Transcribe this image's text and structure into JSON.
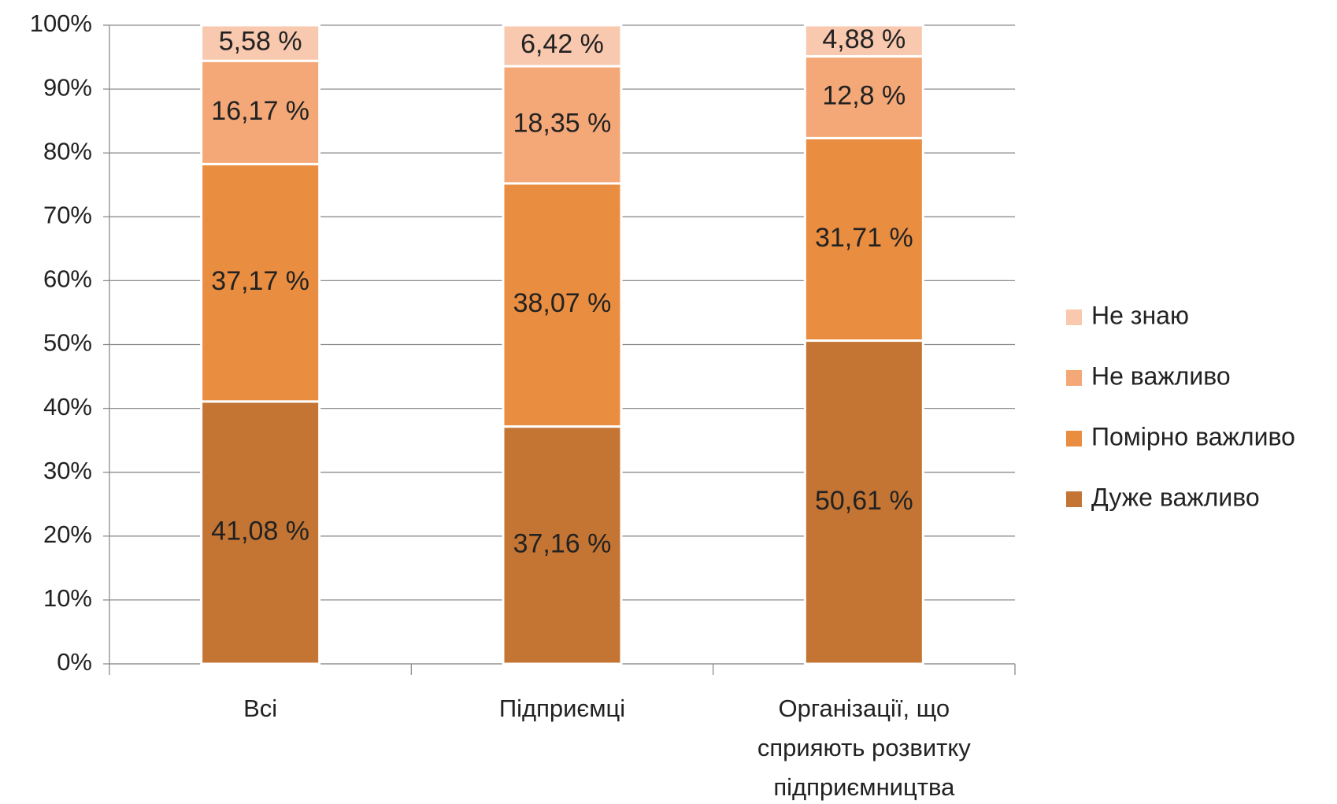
{
  "chart_data": {
    "type": "stacked_bar",
    "categories": [
      "Всі",
      "Підприємці",
      "Організації, що сприяють розвитку підприємництва"
    ],
    "series": [
      {
        "name": "Дуже важливо",
        "color": "#c47534",
        "values": [
          41.08,
          37.16,
          50.61
        ],
        "value_labels": [
          "41,08 %",
          "37,16 %",
          "50,61 %"
        ]
      },
      {
        "name": "Помірно важливо",
        "color": "#e98d41",
        "values": [
          37.17,
          38.07,
          31.71
        ],
        "value_labels": [
          "37,17 %",
          "38,07 %",
          "31,71 %"
        ]
      },
      {
        "name": "Не важливо",
        "color": "#f4a878",
        "values": [
          16.17,
          18.35,
          12.8
        ],
        "value_labels": [
          "16,17 %",
          "18,35 %",
          "12,8 %"
        ]
      },
      {
        "name": "Не знаю",
        "color": "#f8c8af",
        "values": [
          5.58,
          6.42,
          4.88
        ],
        "value_labels": [
          "5,58 %",
          "6,42 %",
          "4,88 %"
        ]
      }
    ],
    "ylim": [
      0,
      100
    ],
    "yticks": [
      {
        "value": 0,
        "label": "0%"
      },
      {
        "value": 10,
        "label": "10%"
      },
      {
        "value": 20,
        "label": "20%"
      },
      {
        "value": 30,
        "label": "30%"
      },
      {
        "value": 40,
        "label": "40%"
      },
      {
        "value": 50,
        "label": "50%"
      },
      {
        "value": 60,
        "label": "60%"
      },
      {
        "value": 70,
        "label": "70%"
      },
      {
        "value": 80,
        "label": "80%"
      },
      {
        "value": 90,
        "label": "90%"
      },
      {
        "value": 100,
        "label": "100%"
      }
    ],
    "grid": true,
    "legend": "right"
  }
}
